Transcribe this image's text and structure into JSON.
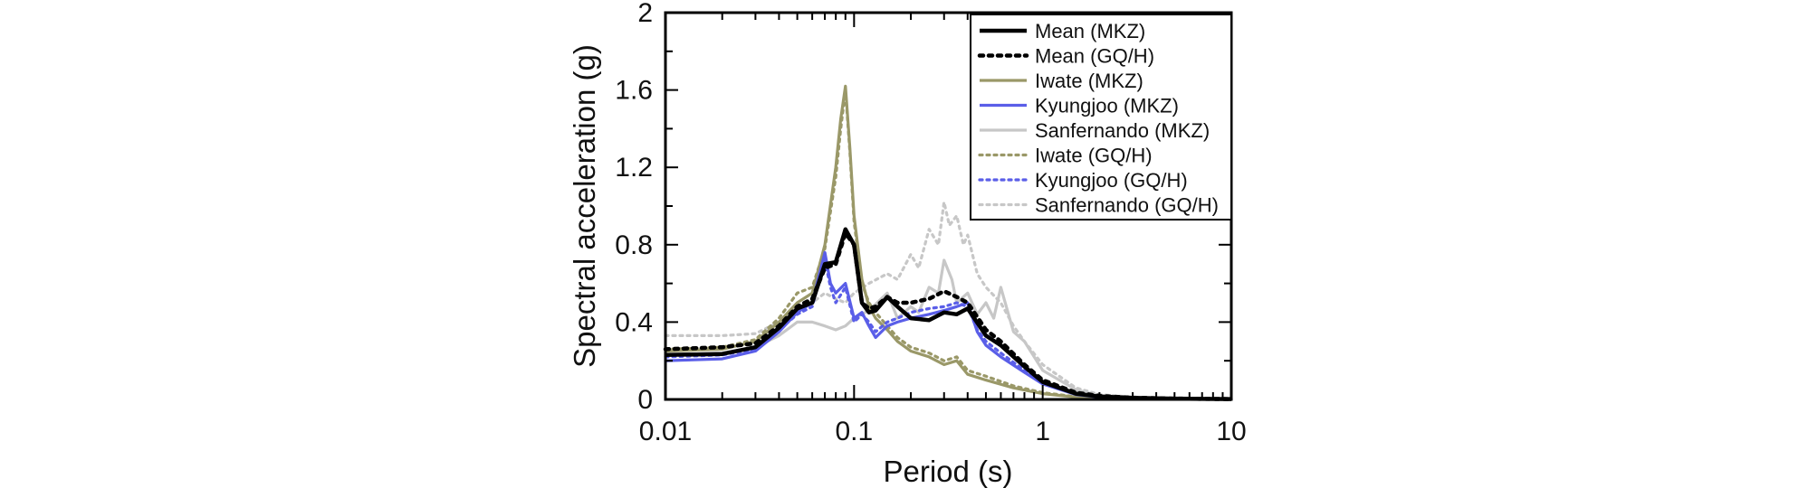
{
  "chart_data": {
    "type": "line",
    "title": "",
    "xlabel": "Period (s)",
    "ylabel": "Spectral acceleration (g)",
    "xscale": "log",
    "xlim": [
      0.01,
      10
    ],
    "ylim": [
      0,
      2
    ],
    "xticks": [
      {
        "value": 0.01,
        "label": "0.01"
      },
      {
        "value": 0.1,
        "label": "0.1"
      },
      {
        "value": 1,
        "label": "1"
      },
      {
        "value": 10,
        "label": "10"
      }
    ],
    "yticks": [
      {
        "value": 0,
        "label": "0"
      },
      {
        "value": 0.4,
        "label": "0.4"
      },
      {
        "value": 0.8,
        "label": "0.8"
      },
      {
        "value": 1.2,
        "label": "1.2"
      },
      {
        "value": 1.6,
        "label": "1.6"
      },
      {
        "value": 2,
        "label": "2"
      }
    ],
    "grid": false,
    "legend_position": "top-right",
    "series": [
      {
        "name": "Mean (MKZ)",
        "color": "#000000",
        "dash": "solid",
        "weight": "heavy",
        "x": [
          0.01,
          0.02,
          0.03,
          0.04,
          0.05,
          0.06,
          0.07,
          0.08,
          0.09,
          0.1,
          0.11,
          0.12,
          0.13,
          0.15,
          0.17,
          0.2,
          0.25,
          0.3,
          0.35,
          0.4,
          0.5,
          0.6,
          0.8,
          1,
          1.5,
          2,
          3,
          5,
          10
        ],
        "values": [
          0.23,
          0.235,
          0.27,
          0.37,
          0.47,
          0.5,
          0.7,
          0.71,
          0.88,
          0.8,
          0.5,
          0.45,
          0.46,
          0.53,
          0.48,
          0.42,
          0.41,
          0.45,
          0.44,
          0.47,
          0.33,
          0.28,
          0.17,
          0.09,
          0.03,
          0.015,
          0.008,
          0.004,
          0.002
        ]
      },
      {
        "name": "Mean (GQ/H)",
        "color": "#000000",
        "dash": "dotted",
        "weight": "heavy",
        "x": [
          0.01,
          0.02,
          0.03,
          0.04,
          0.05,
          0.06,
          0.07,
          0.08,
          0.09,
          0.1,
          0.11,
          0.12,
          0.13,
          0.15,
          0.17,
          0.2,
          0.25,
          0.3,
          0.35,
          0.4,
          0.5,
          0.6,
          0.8,
          1,
          1.5,
          2,
          3,
          5,
          10
        ],
        "values": [
          0.26,
          0.27,
          0.29,
          0.38,
          0.48,
          0.52,
          0.68,
          0.7,
          0.86,
          0.8,
          0.5,
          0.47,
          0.48,
          0.53,
          0.5,
          0.5,
          0.52,
          0.56,
          0.53,
          0.5,
          0.36,
          0.3,
          0.18,
          0.1,
          0.035,
          0.018,
          0.009,
          0.004,
          0.002
        ]
      },
      {
        "name": "Iwate (MKZ)",
        "color": "#9a9868",
        "dash": "solid",
        "weight": "normal",
        "x": [
          0.01,
          0.02,
          0.03,
          0.04,
          0.05,
          0.06,
          0.07,
          0.08,
          0.085,
          0.09,
          0.095,
          0.1,
          0.11,
          0.12,
          0.13,
          0.15,
          0.17,
          0.2,
          0.25,
          0.3,
          0.35,
          0.4,
          0.5,
          0.7,
          1,
          1.5,
          2,
          3,
          5,
          10
        ],
        "values": [
          0.25,
          0.26,
          0.3,
          0.4,
          0.5,
          0.55,
          0.8,
          1.2,
          1.45,
          1.62,
          1.3,
          0.95,
          0.62,
          0.48,
          0.42,
          0.36,
          0.3,
          0.25,
          0.22,
          0.18,
          0.2,
          0.13,
          0.1,
          0.06,
          0.03,
          0.012,
          0.006,
          0.003,
          0.002,
          0.001
        ]
      },
      {
        "name": "Kyungjoo (MKZ)",
        "color": "#5a5ee8",
        "dash": "solid",
        "weight": "normal",
        "x": [
          0.01,
          0.02,
          0.03,
          0.04,
          0.05,
          0.06,
          0.07,
          0.075,
          0.08,
          0.09,
          0.1,
          0.11,
          0.12,
          0.13,
          0.15,
          0.17,
          0.2,
          0.25,
          0.3,
          0.35,
          0.4,
          0.45,
          0.5,
          0.6,
          0.8,
          1,
          1.5,
          2,
          3,
          5,
          10
        ],
        "values": [
          0.2,
          0.21,
          0.25,
          0.35,
          0.45,
          0.5,
          0.76,
          0.6,
          0.55,
          0.6,
          0.42,
          0.45,
          0.38,
          0.32,
          0.38,
          0.4,
          0.42,
          0.44,
          0.46,
          0.48,
          0.5,
          0.35,
          0.28,
          0.22,
          0.14,
          0.08,
          0.025,
          0.012,
          0.006,
          0.003,
          0.002
        ]
      },
      {
        "name": "Sanfernando (MKZ)",
        "color": "#c7c7c7",
        "dash": "solid",
        "weight": "normal",
        "x": [
          0.01,
          0.02,
          0.03,
          0.04,
          0.05,
          0.06,
          0.07,
          0.08,
          0.09,
          0.1,
          0.12,
          0.15,
          0.17,
          0.2,
          0.22,
          0.25,
          0.28,
          0.3,
          0.33,
          0.35,
          0.4,
          0.45,
          0.5,
          0.55,
          0.6,
          0.7,
          0.8,
          1,
          1.5,
          2,
          3,
          5,
          10
        ],
        "values": [
          0.23,
          0.24,
          0.27,
          0.33,
          0.4,
          0.4,
          0.38,
          0.36,
          0.38,
          0.42,
          0.46,
          0.55,
          0.42,
          0.48,
          0.45,
          0.58,
          0.55,
          0.72,
          0.62,
          0.5,
          0.55,
          0.44,
          0.5,
          0.42,
          0.58,
          0.35,
          0.3,
          0.15,
          0.05,
          0.02,
          0.01,
          0.005,
          0.002
        ]
      },
      {
        "name": "Iwate (GQ/H)",
        "color": "#9a9868",
        "dash": "dotted",
        "weight": "normal",
        "x": [
          0.01,
          0.02,
          0.03,
          0.04,
          0.05,
          0.06,
          0.07,
          0.08,
          0.085,
          0.09,
          0.095,
          0.1,
          0.11,
          0.12,
          0.13,
          0.15,
          0.17,
          0.2,
          0.25,
          0.3,
          0.35,
          0.4,
          0.5,
          0.7,
          1,
          1.5,
          2,
          3,
          5,
          10
        ],
        "values": [
          0.26,
          0.27,
          0.31,
          0.42,
          0.55,
          0.58,
          0.78,
          1.15,
          1.4,
          1.6,
          1.28,
          0.92,
          0.6,
          0.5,
          0.45,
          0.38,
          0.32,
          0.27,
          0.24,
          0.2,
          0.22,
          0.15,
          0.12,
          0.07,
          0.035,
          0.014,
          0.007,
          0.004,
          0.002,
          0.001
        ]
      },
      {
        "name": "Kyungjoo (GQ/H)",
        "color": "#5a5ee8",
        "dash": "dotted",
        "weight": "normal",
        "x": [
          0.01,
          0.02,
          0.03,
          0.04,
          0.05,
          0.06,
          0.07,
          0.075,
          0.08,
          0.09,
          0.1,
          0.11,
          0.12,
          0.13,
          0.15,
          0.17,
          0.2,
          0.25,
          0.3,
          0.35,
          0.4,
          0.45,
          0.5,
          0.6,
          0.8,
          1,
          1.5,
          2,
          3,
          5,
          10
        ],
        "values": [
          0.22,
          0.23,
          0.26,
          0.36,
          0.44,
          0.48,
          0.72,
          0.58,
          0.5,
          0.58,
          0.4,
          0.44,
          0.4,
          0.35,
          0.4,
          0.42,
          0.45,
          0.47,
          0.48,
          0.5,
          0.48,
          0.36,
          0.3,
          0.24,
          0.15,
          0.09,
          0.03,
          0.014,
          0.007,
          0.003,
          0.002
        ]
      },
      {
        "name": "Sanfernando (GQ/H)",
        "color": "#c7c7c7",
        "dash": "dotted",
        "weight": "normal",
        "x": [
          0.01,
          0.02,
          0.03,
          0.04,
          0.05,
          0.06,
          0.07,
          0.08,
          0.09,
          0.1,
          0.12,
          0.15,
          0.17,
          0.2,
          0.22,
          0.25,
          0.28,
          0.3,
          0.32,
          0.35,
          0.38,
          0.4,
          0.45,
          0.5,
          0.6,
          0.7,
          0.8,
          1,
          1.5,
          2,
          3,
          5,
          10
        ],
        "values": [
          0.33,
          0.33,
          0.34,
          0.4,
          0.47,
          0.5,
          0.55,
          0.52,
          0.5,
          0.55,
          0.6,
          0.65,
          0.62,
          0.75,
          0.68,
          0.88,
          0.8,
          1.02,
          0.9,
          0.95,
          0.8,
          0.85,
          0.65,
          0.58,
          0.5,
          0.38,
          0.3,
          0.18,
          0.06,
          0.025,
          0.012,
          0.005,
          0.002
        ]
      }
    ]
  }
}
